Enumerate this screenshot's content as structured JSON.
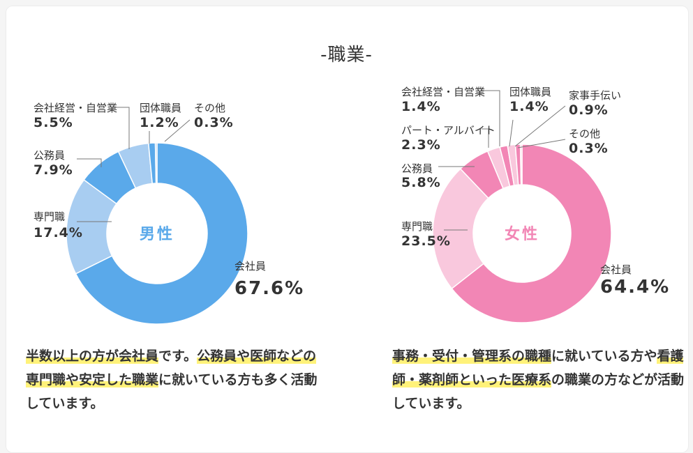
{
  "section_title": "-職業-",
  "chart_data": [
    {
      "type": "pie",
      "center_label": "男性",
      "colors": [
        "#5aa9ea",
        "#a8cdf1",
        "#5aa9ea",
        "#a8cdf1",
        "#5aa9ea",
        "#a8cdf1"
      ],
      "center_color": "#5aa9ea",
      "slices": [
        {
          "label": "会社員",
          "value": 67.6,
          "display": "67.6%"
        },
        {
          "label": "専門職",
          "value": 17.4,
          "display": "17.4%"
        },
        {
          "label": "公務員",
          "value": 7.9,
          "display": "7.9%"
        },
        {
          "label": "会社経営・自営業",
          "value": 5.5,
          "display": "5.5%"
        },
        {
          "label": "団体職員",
          "value": 1.2,
          "display": "1.2%"
        },
        {
          "label": "その他",
          "value": 0.3,
          "display": "0.3%"
        }
      ]
    },
    {
      "type": "pie",
      "center_label": "女性",
      "colors": [
        "#f286b5",
        "#f9c8dd",
        "#f286b5",
        "#f9c8dd",
        "#f286b5",
        "#f9c8dd",
        "#f286b5",
        "#f9c8dd"
      ],
      "center_color": "#f286b5",
      "slices": [
        {
          "label": "会社員",
          "value": 64.4,
          "display": "64.4%"
        },
        {
          "label": "専門職",
          "value": 23.5,
          "display": "23.5%"
        },
        {
          "label": "公務員",
          "value": 5.8,
          "display": "5.8%"
        },
        {
          "label": "パート・アルバイト",
          "value": 2.3,
          "display": "2.3%"
        },
        {
          "label": "会社経営・自営業",
          "value": 1.4,
          "display": "1.4%"
        },
        {
          "label": "団体職員",
          "value": 1.4,
          "display": "1.4%"
        },
        {
          "label": "家事手伝い",
          "value": 0.9,
          "display": "0.9%"
        },
        {
          "label": "その他",
          "value": 0.3,
          "display": "0.3%"
        }
      ]
    }
  ],
  "descriptions": {
    "left": [
      {
        "text": "半数以上の方が会社員",
        "highlight": true
      },
      {
        "text": "です。",
        "highlight": false
      },
      {
        "text": "公務員や医師などの専門職や安定した職業",
        "highlight": true
      },
      {
        "text": "に就いている方も多く活動しています。",
        "highlight": false
      }
    ],
    "right": [
      {
        "text": "事務・受付・管理系の職種",
        "highlight": true
      },
      {
        "text": "に就いている方や",
        "highlight": false
      },
      {
        "text": "看護師・薬剤師といった医療系",
        "highlight": true
      },
      {
        "text": "の職業の方などが活動しています。",
        "highlight": false
      }
    ]
  },
  "highlight_color": "#fff27a"
}
